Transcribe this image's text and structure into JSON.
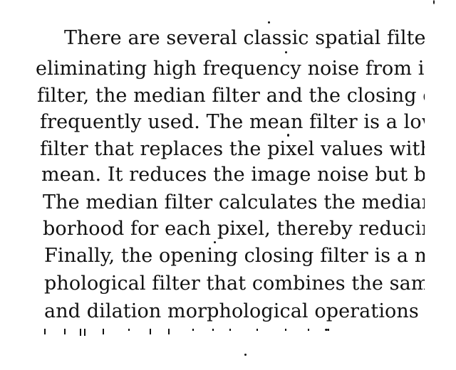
{
  "document": {
    "lines": [
      "There are several classic spatial filters",
      "eliminating high frequency noise from im",
      "filter, the median filter and the closing c",
      "frequently used. The mean filter is a lowp",
      "filter that replaces the pixel values with t",
      "mean. It reduces the image noise but blurs",
      "The median filter calculates the median o",
      "borhood for each pixel, thereby reducing tl",
      "Finally, the opening closing filter is a ma",
      "phological filter that combines the same n",
      "and dilation morphological operations in c"
    ]
  }
}
